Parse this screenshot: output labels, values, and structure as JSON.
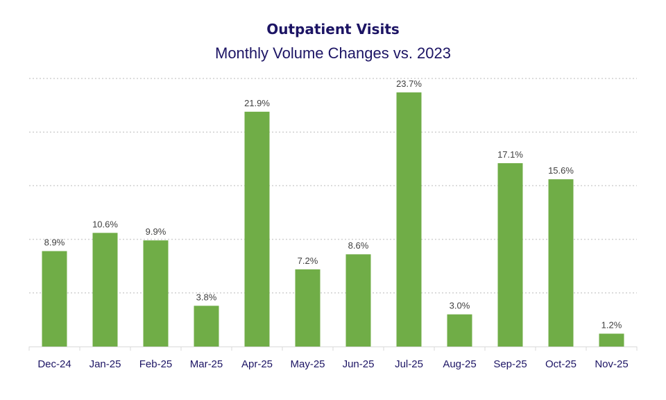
{
  "chart_data": {
    "type": "bar",
    "title": "Outpatient Visits",
    "subtitle": "Monthly Volume Changes vs. 2023",
    "xlabel": "",
    "ylabel": "",
    "categories": [
      "Dec-24",
      "Jan-25",
      "Feb-25",
      "Mar-25",
      "Apr-25",
      "May-25",
      "Jun-25",
      "Jul-25",
      "Aug-25",
      "Sep-25",
      "Oct-25",
      "Nov-25"
    ],
    "values": [
      8.9,
      10.6,
      9.9,
      3.8,
      21.9,
      7.2,
      8.6,
      23.7,
      3.0,
      17.1,
      15.6,
      1.2
    ],
    "data_labels": [
      "8.9%",
      "10.6%",
      "9.9%",
      "3.8%",
      "21.9%",
      "7.2%",
      "8.6%",
      "23.7%",
      "3.0%",
      "17.1%",
      "15.6%",
      "1.2%"
    ],
    "ylim": [
      0,
      25
    ],
    "y_gridlines": [
      5,
      10,
      15,
      20,
      25
    ],
    "y_tick_labels_shown": false,
    "grid": true,
    "grid_style": "dotted",
    "bar_color": "#70ad47",
    "title_color": "#1c1464"
  }
}
